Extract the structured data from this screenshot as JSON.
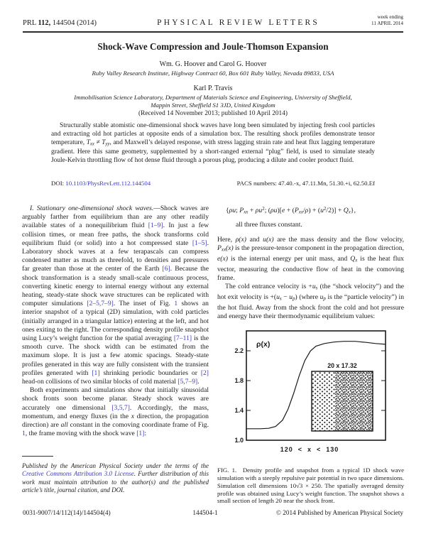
{
  "header": {
    "prl": "PRL",
    "volume": "112,",
    "article": "144504 (2014)",
    "journal": "PHYSICAL REVIEW LETTERS",
    "week_ending": "week ending",
    "issue_date": "11 APRIL 2014"
  },
  "title": "Shock-Wave Compression and Joule-Thomson Expansion",
  "authors_group1": "Wm. G. Hoover and Carol G. Hoover",
  "affiliation1": "Ruby Valley Research Institute, Highway Contract 60, Box 601 Ruby Valley, Nevada 89833, USA",
  "authors_group2": "Karl P. Travis",
  "affiliation2a": "Immobilisation Science Laboratory, Department of Materials Science and Engineering, University of Sheffield,",
  "affiliation2b": "Mappin Street, Sheffield S1 3JD, United Kingdom",
  "received": "(Received 14 November 2013; published 10 April 2014)",
  "abstract": [
    {
      "t": "Structurally stable atomistic one-dimensional shock waves have long been simulated by injecting fresh cool particles and extracting old hot particles at opposite ends of a simulation box. The resulting shock profiles demonstrate tensor temperature, ",
      "s": ""
    },
    {
      "t": "T",
      "s": "i"
    },
    {
      "t": "xx",
      "s": "isub"
    },
    {
      "t": " ≠ ",
      "s": ""
    },
    {
      "t": "T",
      "s": "i"
    },
    {
      "t": "yy",
      "s": "isub"
    },
    {
      "t": ", and Maxwell’s delayed response, with stress lagging strain rate and heat flux lagging temperature gradient. Here this same geometry, supplemented by a short-ranged external “plug” field, is used to simulate steady Joule-Kelvin throttling flow of hot dense fluid through a porous plug, producing a dilute and cooler product fluid.",
      "s": ""
    }
  ],
  "doi": {
    "label": "DOI:",
    "link": "10.1103/PhysRevLett.112.144504"
  },
  "pacs": "PACS numbers: 47.40.-x, 47.11.Mn, 51.30.+i, 62.50.Ef",
  "left_column": {
    "para1": [
      {
        "t": "I. Stationary one-dimensional shock waves.",
        "s": "i"
      },
      {
        "t": "—Shock waves are arguably farther from equilibrium than are any other readily available states of a nonequilibrium fluid ",
        "s": ""
      },
      {
        "t": "[1–9]",
        "s": "ref"
      },
      {
        "t": ". In just a few collision times, or mean free paths, the shock transforms cold equilibrium fluid (or solid) into a hot compressed state ",
        "s": ""
      },
      {
        "t": "[1–5]",
        "s": "ref"
      },
      {
        "t": ". Laboratory shock waves at a few terapascals can compress condensed matter as much as threefold, to densities and pressures far greater than those at the center of the Earth ",
        "s": ""
      },
      {
        "t": "[6]",
        "s": "ref"
      },
      {
        "t": ". Because the shock transformation is a steady small-scale continuous process, converting kinetic energy to internal energy without any external heating, steady-state shock wave structures can be replicated with computer simulations ",
        "s": ""
      },
      {
        "t": "[2–5,7–9]",
        "s": "ref"
      },
      {
        "t": ". The inset of Fig. ",
        "s": ""
      },
      {
        "t": "1",
        "s": "ref"
      },
      {
        "t": " shows an interior snapshot of a typical (2D) simulation, with cold particles (initially arranged in a triangular lattice) entering at the left, and hot ones exiting to the right. The corresponding density profile snapshot using Lucy’s weight function for the spatial averaging ",
        "s": ""
      },
      {
        "t": "[7–11]",
        "s": "ref"
      },
      {
        "t": " is the smooth curve. The shock width can be estimated from the maximum slope. It is just a few atomic spacings. Steady-state profiles generated in this way are fully consistent with the transient profiles generated with ",
        "s": ""
      },
      {
        "t": "[1]",
        "s": "ref"
      },
      {
        "t": " shrinking periodic boundaries or ",
        "s": ""
      },
      {
        "t": "[2]",
        "s": "ref"
      },
      {
        "t": " head-on collisions of two similar blocks of cold material ",
        "s": ""
      },
      {
        "t": "[5,7–9]",
        "s": "ref"
      },
      {
        "t": ".",
        "s": ""
      }
    ],
    "para2": [
      {
        "t": "Both experiments and simulations show that initially sinusoidal shock fronts soon become planar. Steady shock waves are accurately one dimensional ",
        "s": ""
      },
      {
        "t": "[3,5,7]",
        "s": "ref"
      },
      {
        "t": ". Accordingly, the mass, momentum, and energy fluxes (in the ",
        "s": ""
      },
      {
        "t": "x",
        "s": "i"
      },
      {
        "t": " direction, the propagation direction) are ",
        "s": ""
      },
      {
        "t": "all",
        "s": "i"
      },
      {
        "t": " constant in the comoving coordinate frame of Fig. ",
        "s": ""
      },
      {
        "t": "1",
        "s": "ref"
      },
      {
        "t": ", the frame moving with the shock wave ",
        "s": ""
      },
      {
        "t": "[1]",
        "s": "ref"
      },
      {
        "t": ":",
        "s": ""
      }
    ]
  },
  "equation": {
    "display": [
      {
        "t": "{",
        "s": ""
      },
      {
        "t": "ρu",
        "s": "i"
      },
      {
        "t": "; ",
        "s": ""
      },
      {
        "t": "P",
        "s": "i"
      },
      {
        "t": "xx",
        "s": "isub"
      },
      {
        "t": " + ",
        "s": ""
      },
      {
        "t": "ρu",
        "s": "i"
      },
      {
        "t": "2",
        "s": "sup"
      },
      {
        "t": "; (",
        "s": ""
      },
      {
        "t": "ρu",
        "s": "i"
      },
      {
        "t": ")[",
        "s": ""
      },
      {
        "t": "e",
        "s": "i"
      },
      {
        "t": " + (",
        "s": ""
      },
      {
        "t": "P",
        "s": "i"
      },
      {
        "t": "xx",
        "s": "isub"
      },
      {
        "t": "/",
        "s": ""
      },
      {
        "t": "ρ",
        "s": "i"
      },
      {
        "t": ") + (",
        "s": ""
      },
      {
        "t": "u",
        "s": "i"
      },
      {
        "t": "2",
        "s": "sup"
      },
      {
        "t": "/2)] + ",
        "s": ""
      },
      {
        "t": "Q",
        "s": "i"
      },
      {
        "t": "x",
        "s": "isub"
      },
      {
        "t": "},",
        "s": ""
      }
    ],
    "tagline": "all three fluxes constant."
  },
  "right_column": {
    "para1": [
      {
        "t": "Here, ",
        "s": ""
      },
      {
        "t": "ρ(x)",
        "s": "i"
      },
      {
        "t": " and ",
        "s": ""
      },
      {
        "t": "u(x)",
        "s": "i"
      },
      {
        "t": " are the mass density and the flow velocity, ",
        "s": ""
      },
      {
        "t": "P",
        "s": "i"
      },
      {
        "t": "xx",
        "s": "isub"
      },
      {
        "t": "(x)",
        "s": "i"
      },
      {
        "t": " is the pressure-tensor component in the propagation direction, ",
        "s": ""
      },
      {
        "t": "e(x)",
        "s": "i"
      },
      {
        "t": " is the internal energy per unit mass, and ",
        "s": ""
      },
      {
        "t": "Q",
        "s": "i"
      },
      {
        "t": "x",
        "s": "isub"
      },
      {
        "t": " is the heat flux vector, measuring the conductive flow of heat in the comoving frame.",
        "s": ""
      }
    ],
    "para2": [
      {
        "t": "The cold entrance velocity is +",
        "s": ""
      },
      {
        "t": "u",
        "s": "i"
      },
      {
        "t": "s",
        "s": "isub"
      },
      {
        "t": " (the “shock velocity”) and the hot exit velocity is +(",
        "s": ""
      },
      {
        "t": "u",
        "s": "i"
      },
      {
        "t": "s",
        "s": "isub"
      },
      {
        "t": " − ",
        "s": ""
      },
      {
        "t": "u",
        "s": "i"
      },
      {
        "t": "p",
        "s": "isub"
      },
      {
        "t": ") (where ",
        "s": ""
      },
      {
        "t": "u",
        "s": "i"
      },
      {
        "t": "p",
        "s": "isub"
      },
      {
        "t": " is the “particle velocity”) in the hot fluid. Away from the shock front the cold and hot pressure and energy have their thermodynamic equilibrium values:",
        "s": ""
      }
    ]
  },
  "figure": {
    "caption": "FIG. 1.  Density profile and snapshot from a typical 1D shock wave simulation with a steeply repulsive pair potential in two space dimensions. Simulation cell dimensions 10√3 × 250. The spatially averaged density profile was obtained using Lucy’s weight function. The snapshot shows a small section of length 20 near the shock front."
  },
  "chart_data": {
    "type": "line",
    "ylabel": "ρ(x)",
    "xlabel": "120  <  x  <  130",
    "ytick_labels": [
      "2.2",
      "1.8",
      "1.4",
      "1.0"
    ],
    "yticks": [
      2.2,
      1.8,
      1.4,
      1.0
    ],
    "ylim": [
      1.0,
      2.47
    ],
    "xlim_description": "x from 120 to 130 (shock frame position)",
    "inset_label": "20 x 17.32",
    "inset_description": "particle snapshot: ordered cold triangular lattice on left, disordered hot fluid on right",
    "points": [
      [
        0.0,
        1.155
      ],
      [
        0.1,
        1.155
      ],
      [
        0.16,
        1.16
      ],
      [
        0.21,
        1.185
      ],
      [
        0.26,
        1.27
      ],
      [
        0.3,
        1.42
      ],
      [
        0.34,
        1.63
      ],
      [
        0.38,
        1.87
      ],
      [
        0.42,
        2.07
      ],
      [
        0.46,
        2.2
      ],
      [
        0.5,
        2.265
      ],
      [
        0.56,
        2.3
      ],
      [
        0.63,
        2.32
      ],
      [
        0.7,
        2.33
      ],
      [
        0.78,
        2.33
      ],
      [
        0.86,
        2.315
      ],
      [
        0.93,
        2.3
      ],
      [
        1.0,
        2.29
      ]
    ]
  },
  "footnote": [
    {
      "t": "Published by the American Physical Society under the terms of the ",
      "s": "i"
    },
    {
      "t": "Creative Commons Attribution 3.0 License",
      "s": "refi"
    },
    {
      "t": ". Further distribution of this work must maintain attribution to the author(s) and the published article’s title, journal citation, and DOI.",
      "s": "i"
    }
  ],
  "footer": {
    "issn_code": "0031-9007/14/112(14)/144504(4)",
    "page_number": "144504-1",
    "copyright": "© 2014 Published by American Physical Society"
  }
}
